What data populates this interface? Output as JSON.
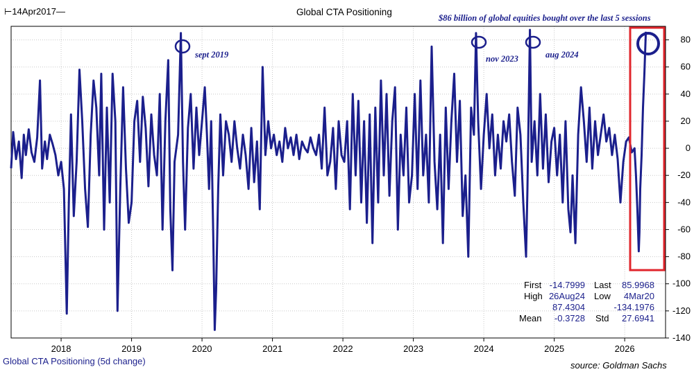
{
  "header": {
    "start_date": "14Apr2017",
    "title": "Global CTA Positioning",
    "headline": "$86 billion of global equities bought over the last 5 sessions"
  },
  "annotations": {
    "sept_2019": "sept 2019",
    "nov_2023": "nov 2023",
    "aug_2024": "aug 2024"
  },
  "stats": {
    "first_label": "First",
    "first_value": "-14.7999",
    "last_label": "Last",
    "last_value": "85.9968",
    "high_label": "High",
    "high_date": "26Aug24",
    "high_value": "87.4304",
    "low_label": "Low",
    "low_date": "4Mar20",
    "low_value": "-134.1976",
    "mean_label": "Mean",
    "mean_value": "-0.3728",
    "std_label": "Std",
    "std_value": "27.6941"
  },
  "footer": {
    "series_label": "Global CTA Positioning (5d change)",
    "source": "source: Goldman Sachs"
  },
  "colors": {
    "series": "#1b1f8c",
    "highlight_box": "#e0262c",
    "grid": "#c8c8c8"
  },
  "chart_data": {
    "type": "line",
    "title": "Global CTA Positioning",
    "ylim": [
      -140,
      90
    ],
    "yticks": [
      80,
      60,
      40,
      20,
      0,
      -20,
      -40,
      -60,
      -80,
      -100,
      -120,
      -140
    ],
    "xlim": [
      2017.29,
      2026.58
    ],
    "xticks": [
      "2018",
      "2019",
      "2020",
      "2021",
      "2022",
      "2023",
      "2024",
      "2025",
      "2026"
    ],
    "grid": true,
    "series": [
      {
        "name": "Global CTA Positioning (5d change)",
        "points": [
          [
            2017.29,
            -14.8
          ],
          [
            2017.32,
            12
          ],
          [
            2017.36,
            -8
          ],
          [
            2017.4,
            5
          ],
          [
            2017.44,
            -22
          ],
          [
            2017.47,
            10
          ],
          [
            2017.5,
            -5
          ],
          [
            2017.54,
            14
          ],
          [
            2017.58,
            -3
          ],
          [
            2017.62,
            -10
          ],
          [
            2017.66,
            8
          ],
          [
            2017.7,
            50
          ],
          [
            2017.73,
            -15
          ],
          [
            2017.77,
            5
          ],
          [
            2017.8,
            -8
          ],
          [
            2017.84,
            10
          ],
          [
            2017.88,
            3
          ],
          [
            2017.92,
            -5
          ],
          [
            2017.96,
            -20
          ],
          [
            2018.0,
            -10
          ],
          [
            2018.04,
            -30
          ],
          [
            2018.08,
            -122
          ],
          [
            2018.11,
            -40
          ],
          [
            2018.14,
            25
          ],
          [
            2018.18,
            -50
          ],
          [
            2018.22,
            -10
          ],
          [
            2018.26,
            58
          ],
          [
            2018.3,
            20
          ],
          [
            2018.34,
            -30
          ],
          [
            2018.38,
            -58
          ],
          [
            2018.42,
            10
          ],
          [
            2018.46,
            50
          ],
          [
            2018.5,
            30
          ],
          [
            2018.54,
            -20
          ],
          [
            2018.57,
            55
          ],
          [
            2018.61,
            -60
          ],
          [
            2018.65,
            30
          ],
          [
            2018.69,
            -40
          ],
          [
            2018.73,
            55
          ],
          [
            2018.77,
            20
          ],
          [
            2018.8,
            -120
          ],
          [
            2018.84,
            -30
          ],
          [
            2018.88,
            45
          ],
          [
            2018.92,
            -15
          ],
          [
            2018.96,
            -55
          ],
          [
            2019.0,
            -40
          ],
          [
            2019.04,
            20
          ],
          [
            2019.08,
            35
          ],
          [
            2019.12,
            -10
          ],
          [
            2019.16,
            38
          ],
          [
            2019.2,
            15
          ],
          [
            2019.24,
            -28
          ],
          [
            2019.28,
            25
          ],
          [
            2019.32,
            -5
          ],
          [
            2019.36,
            -20
          ],
          [
            2019.4,
            40
          ],
          [
            2019.44,
            -60
          ],
          [
            2019.48,
            20
          ],
          [
            2019.52,
            65
          ],
          [
            2019.55,
            -45
          ],
          [
            2019.58,
            -90
          ],
          [
            2019.61,
            -10
          ],
          [
            2019.66,
            10
          ],
          [
            2019.7,
            85
          ],
          [
            2019.73,
            -10
          ],
          [
            2019.76,
            -60
          ],
          [
            2019.8,
            15
          ],
          [
            2019.84,
            40
          ],
          [
            2019.88,
            -15
          ],
          [
            2019.92,
            30
          ],
          [
            2019.96,
            -5
          ],
          [
            2020.0,
            20
          ],
          [
            2020.04,
            45
          ],
          [
            2020.07,
            10
          ],
          [
            2020.1,
            -30
          ],
          [
            2020.13,
            20
          ],
          [
            2020.16,
            -65
          ],
          [
            2020.18,
            -134
          ],
          [
            2020.2,
            -105
          ],
          [
            2020.23,
            -30
          ],
          [
            2020.26,
            25
          ],
          [
            2020.3,
            -20
          ],
          [
            2020.34,
            20
          ],
          [
            2020.38,
            10
          ],
          [
            2020.42,
            -10
          ],
          [
            2020.46,
            20
          ],
          [
            2020.5,
            0
          ],
          [
            2020.54,
            -15
          ],
          [
            2020.58,
            10
          ],
          [
            2020.62,
            -5
          ],
          [
            2020.66,
            -30
          ],
          [
            2020.7,
            15
          ],
          [
            2020.74,
            -25
          ],
          [
            2020.78,
            5
          ],
          [
            2020.82,
            -45
          ],
          [
            2020.86,
            60
          ],
          [
            2020.9,
            -5
          ],
          [
            2020.94,
            20
          ],
          [
            2020.98,
            0
          ],
          [
            2021.02,
            10
          ],
          [
            2021.06,
            -5
          ],
          [
            2021.1,
            5
          ],
          [
            2021.14,
            -10
          ],
          [
            2021.18,
            15
          ],
          [
            2021.22,
            0
          ],
          [
            2021.26,
            8
          ],
          [
            2021.3,
            -5
          ],
          [
            2021.34,
            10
          ],
          [
            2021.38,
            -8
          ],
          [
            2021.42,
            5
          ],
          [
            2021.46,
            0
          ],
          [
            2021.5,
            -3
          ],
          [
            2021.54,
            8
          ],
          [
            2021.58,
            0
          ],
          [
            2021.62,
            -5
          ],
          [
            2021.66,
            10
          ],
          [
            2021.7,
            -15
          ],
          [
            2021.74,
            30
          ],
          [
            2021.78,
            -20
          ],
          [
            2021.82,
            -10
          ],
          [
            2021.86,
            15
          ],
          [
            2021.9,
            -30
          ],
          [
            2021.94,
            20
          ],
          [
            2021.98,
            -5
          ],
          [
            2022.02,
            -10
          ],
          [
            2022.06,
            20
          ],
          [
            2022.1,
            -45
          ],
          [
            2022.14,
            40
          ],
          [
            2022.18,
            -20
          ],
          [
            2022.22,
            35
          ],
          [
            2022.26,
            -40
          ],
          [
            2022.3,
            20
          ],
          [
            2022.34,
            -55
          ],
          [
            2022.38,
            25
          ],
          [
            2022.42,
            -70
          ],
          [
            2022.46,
            30
          ],
          [
            2022.5,
            -40
          ],
          [
            2022.54,
            50
          ],
          [
            2022.58,
            -20
          ],
          [
            2022.62,
            40
          ],
          [
            2022.66,
            -35
          ],
          [
            2022.7,
            20
          ],
          [
            2022.74,
            45
          ],
          [
            2022.78,
            -60
          ],
          [
            2022.82,
            10
          ],
          [
            2022.86,
            -20
          ],
          [
            2022.9,
            30
          ],
          [
            2022.94,
            -40
          ],
          [
            2022.98,
            -20
          ],
          [
            2023.02,
            40
          ],
          [
            2023.06,
            -30
          ],
          [
            2023.1,
            50
          ],
          [
            2023.14,
            -20
          ],
          [
            2023.18,
            10
          ],
          [
            2023.22,
            -40
          ],
          [
            2023.26,
            75
          ],
          [
            2023.3,
            -10
          ],
          [
            2023.34,
            -45
          ],
          [
            2023.38,
            10
          ],
          [
            2023.42,
            -70
          ],
          [
            2023.46,
            30
          ],
          [
            2023.5,
            -30
          ],
          [
            2023.54,
            20
          ],
          [
            2023.58,
            55
          ],
          [
            2023.62,
            -10
          ],
          [
            2023.66,
            35
          ],
          [
            2023.7,
            -50
          ],
          [
            2023.74,
            -20
          ],
          [
            2023.78,
            -80
          ],
          [
            2023.82,
            30
          ],
          [
            2023.86,
            10
          ],
          [
            2023.89,
            85
          ],
          [
            2023.92,
            20
          ],
          [
            2023.96,
            -30
          ],
          [
            2024.0,
            10
          ],
          [
            2024.04,
            40
          ],
          [
            2024.08,
            0
          ],
          [
            2024.12,
            25
          ],
          [
            2024.16,
            -20
          ],
          [
            2024.2,
            10
          ],
          [
            2024.24,
            -15
          ],
          [
            2024.28,
            20
          ],
          [
            2024.32,
            5
          ],
          [
            2024.36,
            25
          ],
          [
            2024.4,
            -10
          ],
          [
            2024.44,
            -35
          ],
          [
            2024.48,
            30
          ],
          [
            2024.52,
            10
          ],
          [
            2024.56,
            -40
          ],
          [
            2024.6,
            -80
          ],
          [
            2024.62,
            -30
          ],
          [
            2024.655,
            87.4
          ],
          [
            2024.68,
            -10
          ],
          [
            2024.72,
            20
          ],
          [
            2024.76,
            -20
          ],
          [
            2024.8,
            40
          ],
          [
            2024.84,
            -15
          ],
          [
            2024.88,
            25
          ],
          [
            2024.92,
            -25
          ],
          [
            2024.96,
            5
          ],
          [
            2025.0,
            15
          ],
          [
            2025.04,
            -20
          ],
          [
            2025.08,
            10
          ],
          [
            2025.12,
            -40
          ],
          [
            2025.16,
            20
          ],
          [
            2025.2,
            -45
          ],
          [
            2025.23,
            -62
          ],
          [
            2025.26,
            -20
          ],
          [
            2025.3,
            -70
          ],
          [
            2025.34,
            10
          ],
          [
            2025.38,
            45
          ],
          [
            2025.42,
            20
          ],
          [
            2025.46,
            -10
          ],
          [
            2025.5,
            30
          ],
          [
            2025.54,
            -15
          ],
          [
            2025.58,
            20
          ],
          [
            2025.62,
            -5
          ],
          [
            2025.66,
            10
          ],
          [
            2025.7,
            25
          ],
          [
            2025.74,
            5
          ],
          [
            2025.78,
            15
          ],
          [
            2025.82,
            -5
          ],
          [
            2025.86,
            10
          ],
          [
            2025.9,
            -8
          ],
          [
            2025.94,
            -40
          ],
          [
            2025.98,
            -10
          ],
          [
            2026.02,
            5
          ],
          [
            2026.06,
            8
          ],
          [
            2026.1,
            -3
          ],
          [
            2026.14,
            0
          ],
          [
            2026.16,
            -20
          ],
          [
            2026.18,
            -45
          ],
          [
            2026.2,
            -76
          ],
          [
            2026.21,
            -62
          ],
          [
            2026.22,
            -30
          ],
          [
            2026.24,
            -5
          ],
          [
            2026.26,
            30
          ],
          [
            2026.28,
            55
          ],
          [
            2026.3,
            86
          ]
        ]
      }
    ]
  }
}
